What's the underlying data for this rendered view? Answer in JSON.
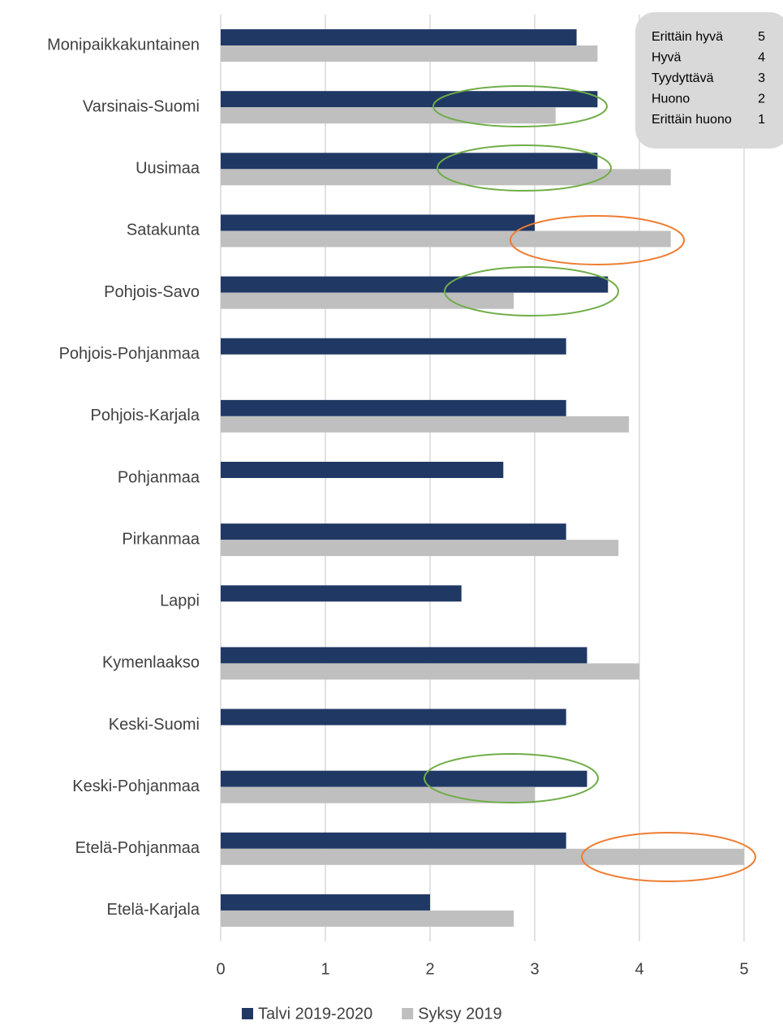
{
  "chart_data": {
    "type": "barh",
    "categories": [
      "Monipaikkakuntainen",
      "Varsinais-Suomi",
      "Uusimaa",
      "Satakunta",
      "Pohjois-Savo",
      "Pohjois-Pohjanmaa",
      "Pohjois-Karjala",
      "Pohjanmaa",
      "Pirkanmaa",
      "Lappi",
      "Kymenlaakso",
      "Keski-Suomi",
      "Keski-Pohjanmaa",
      "Etelä-Pohjanmaa",
      "Etelä-Karjala"
    ],
    "series": [
      {
        "name": "Talvi 2019-2020",
        "color": "#203864",
        "values": [
          3.4,
          3.6,
          3.6,
          3.0,
          3.7,
          3.3,
          3.3,
          2.7,
          3.3,
          2.3,
          3.5,
          3.3,
          3.5,
          3.3,
          2.0
        ]
      },
      {
        "name": "Syksy 2019",
        "color": "#bfbfbf",
        "values": [
          3.6,
          3.2,
          4.3,
          4.3,
          2.8,
          null,
          3.9,
          null,
          3.8,
          null,
          4.0,
          null,
          3.0,
          5.0,
          2.8
        ]
      }
    ],
    "xlim": [
      0,
      5
    ],
    "xticks": [
      0,
      1,
      2,
      3,
      4,
      5
    ],
    "grid": true,
    "legend": "bottom",
    "rating_scale": [
      {
        "label": "Erittäin hyvä",
        "value": 5
      },
      {
        "label": "Hyvä",
        "value": 4
      },
      {
        "label": "Tyydyttävä",
        "value": 3
      },
      {
        "label": "Huono",
        "value": 2
      },
      {
        "label": "Erittäin huono",
        "value": 1
      }
    ]
  }
}
